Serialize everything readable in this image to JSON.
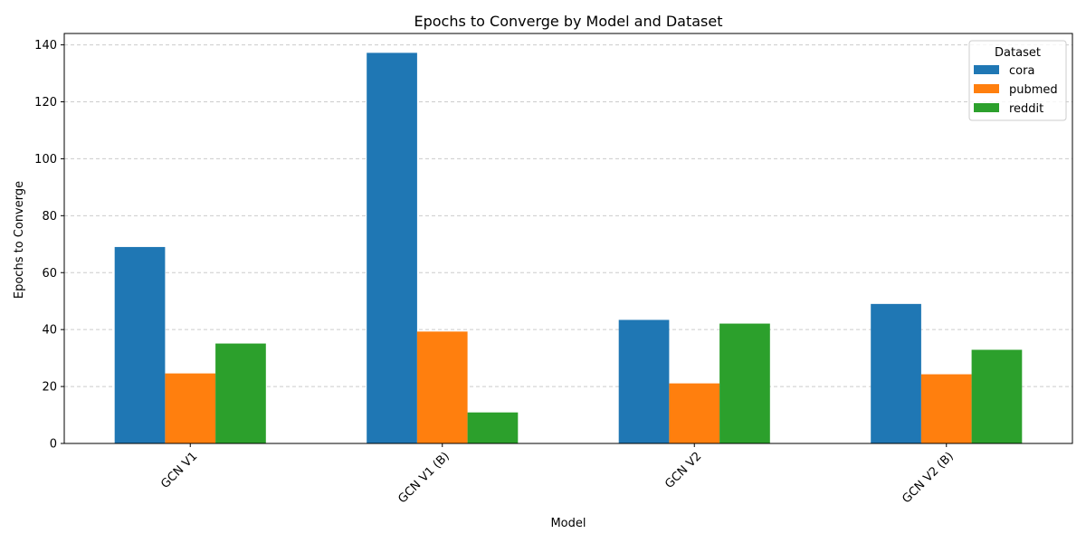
{
  "chart_data": {
    "type": "bar",
    "title": "Epochs to Converge by Model and Dataset",
    "xlabel": "Model",
    "ylabel": "Epochs to Converge",
    "categories": [
      "GCN V1",
      "GCN V1 (B)",
      "GCN V2",
      "GCN V2 (B)"
    ],
    "series": [
      {
        "name": "cora",
        "color": "#1f77b4",
        "values": [
          69,
          137.2,
          43.4,
          49
        ]
      },
      {
        "name": "pubmed",
        "color": "#ff7f0e",
        "values": [
          24.6,
          39.3,
          21.1,
          24.3
        ]
      },
      {
        "name": "reddit",
        "color": "#2ca02c",
        "values": [
          35.1,
          10.9,
          42.1,
          32.9
        ]
      }
    ],
    "ylim": [
      0,
      144
    ],
    "yticks": [
      0,
      20,
      40,
      60,
      80,
      100,
      120,
      140
    ],
    "grid": "y-dashed",
    "legend": {
      "title": "Dataset",
      "placement": "top-right"
    }
  }
}
